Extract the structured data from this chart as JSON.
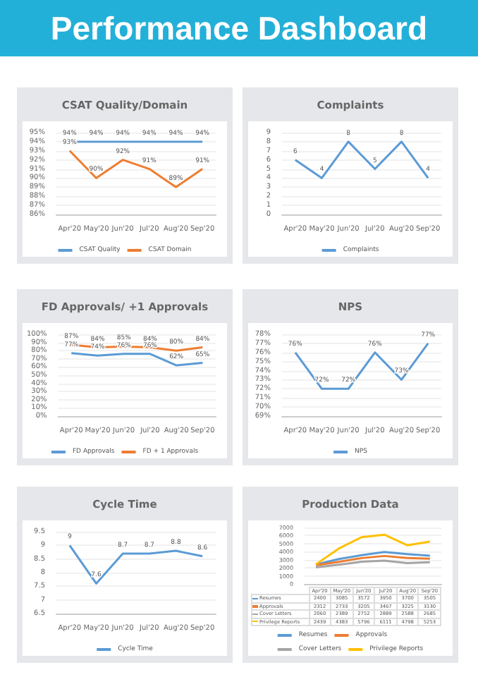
{
  "chart_data": [
    {
      "type": "other",
      "title": "Performance Dashboard"
    },
    {
      "type": "line",
      "title": "CSAT Quality/Domain",
      "categories": [
        "Apr'20",
        "May'20",
        "Jun'20",
        "Jul'20",
        "Aug'20",
        "Sep'20"
      ],
      "series": [
        {
          "name": "CSAT Quality",
          "color": "#5b9bd5",
          "values": [
            94,
            94,
            94,
            94,
            94,
            94
          ],
          "value_labels": [
            "94%",
            "94%",
            "94%",
            "94%",
            "94%",
            "94%"
          ]
        },
        {
          "name": "CSAT Domain",
          "color": "#ed7d31",
          "values": [
            93,
            90,
            92,
            91,
            89,
            91
          ],
          "value_labels": [
            "93%",
            "90%",
            "92%",
            "91%",
            "89%",
            "91%"
          ]
        }
      ],
      "ylim": [
        86,
        95
      ],
      "yticks": [
        {
          "value": 86,
          "label": "86%"
        },
        {
          "value": 87,
          "label": "87%"
        },
        {
          "value": 88,
          "label": "88%"
        },
        {
          "value": 89,
          "label": "89%"
        },
        {
          "value": 90,
          "label": "90%"
        },
        {
          "value": 91,
          "label": "91%"
        },
        {
          "value": 92,
          "label": "92%"
        },
        {
          "value": 93,
          "label": "93%"
        },
        {
          "value": 94,
          "label": "94%"
        },
        {
          "value": 95,
          "label": "95%"
        }
      ],
      "grid": "y",
      "legend": "bottom",
      "marker": "none"
    },
    {
      "type": "line",
      "title": "Complaints",
      "categories": [
        "Apr'20",
        "May'20",
        "Jun'20",
        "Jul'20",
        "Aug'20",
        "Sep'20"
      ],
      "series": [
        {
          "name": "Complaints",
          "color": "#5b9bd5",
          "values": [
            6,
            4,
            8,
            5,
            8,
            4
          ]
        }
      ],
      "ylim": [
        0,
        9
      ],
      "yticks": [
        0,
        1,
        2,
        3,
        4,
        5,
        6,
        7,
        8,
        9
      ],
      "grid": "y",
      "legend": "bottom",
      "marker": "none",
      "data_labels": true
    },
    {
      "type": "line",
      "title": "FD Approvals/ +1 Approvals",
      "categories": [
        "Apr'20",
        "May'20",
        "Jun'20",
        "Jul'20",
        "Aug'20",
        "Sep'20"
      ],
      "series": [
        {
          "name": "FD Approvals",
          "color": "#5b9bd5",
          "values": [
            77,
            74,
            76,
            76,
            62,
            65
          ],
          "value_labels": [
            "77%",
            "74%",
            "76%",
            "76%",
            "62%",
            "65%"
          ]
        },
        {
          "name": "FD + 1 Approvals",
          "color": "#ed7d31",
          "values": [
            87,
            84,
            85,
            84,
            80,
            84
          ],
          "value_labels": [
            "87%",
            "84%",
            "85%",
            "84%",
            "80%",
            "84%"
          ]
        }
      ],
      "ylim": [
        0,
        100
      ],
      "yticks": [
        {
          "value": 0,
          "label": "0%"
        },
        {
          "value": 10,
          "label": "10%"
        },
        {
          "value": 20,
          "label": "20%"
        },
        {
          "value": 30,
          "label": "30%"
        },
        {
          "value": 40,
          "label": "40%"
        },
        {
          "value": 50,
          "label": "50%"
        },
        {
          "value": 60,
          "label": "60%"
        },
        {
          "value": 70,
          "label": "70%"
        },
        {
          "value": 80,
          "label": "80%"
        },
        {
          "value": 90,
          "label": "90%"
        },
        {
          "value": 100,
          "label": "100%"
        }
      ],
      "grid": "y",
      "legend": "bottom",
      "marker": "none"
    },
    {
      "type": "line",
      "title": "NPS",
      "categories": [
        "Apr'20",
        "May'20",
        "Jun'20",
        "Jul'20",
        "Aug'20",
        "Sep'20"
      ],
      "series": [
        {
          "name": "NPS",
          "color": "#5b9bd5",
          "values": [
            76,
            72,
            72,
            76,
            73,
            77
          ],
          "value_labels": [
            "76%",
            "72%",
            "72%",
            "76%",
            "73%",
            "77%"
          ]
        }
      ],
      "ylim": [
        69,
        78
      ],
      "yticks": [
        {
          "value": 69,
          "label": "69%"
        },
        {
          "value": 70,
          "label": "70%"
        },
        {
          "value": 71,
          "label": "71%"
        },
        {
          "value": 72,
          "label": "72%"
        },
        {
          "value": 73,
          "label": "73%"
        },
        {
          "value": 74,
          "label": "74%"
        },
        {
          "value": 75,
          "label": "75%"
        },
        {
          "value": 76,
          "label": "76%"
        },
        {
          "value": 77,
          "label": "77%"
        },
        {
          "value": 78,
          "label": "78%"
        }
      ],
      "grid": "y",
      "legend": "bottom",
      "marker": "none"
    },
    {
      "type": "line",
      "title": "Cycle Time",
      "categories": [
        "Apr'20",
        "May'20",
        "Jun'20",
        "Jul'20",
        "Aug'20",
        "Sep'20"
      ],
      "series": [
        {
          "name": "Cycle Time",
          "color": "#5b9bd5",
          "values": [
            9,
            7.6,
            8.7,
            8.7,
            8.8,
            8.6
          ]
        }
      ],
      "ylim": [
        6.5,
        9.5
      ],
      "yticks": [
        6.5,
        7,
        7.5,
        8,
        8.5,
        9,
        9.5
      ],
      "grid": "y",
      "legend": "bottom",
      "marker": "none",
      "data_labels": true
    },
    {
      "type": "line",
      "title": "Production Data",
      "categories": [
        "Apr'20",
        "May'20",
        "Jun'20",
        "Jul'20",
        "Aug'20",
        "Sep'20"
      ],
      "series": [
        {
          "name": "Resumes",
          "color": "#5b9bd5",
          "values": [
            2400,
            3085,
            3572,
            3950,
            3700,
            3505
          ]
        },
        {
          "name": "Approvals",
          "color": "#ed7d31",
          "values": [
            2312,
            2733,
            3205,
            3467,
            3225,
            3130
          ]
        },
        {
          "name": "Cover Letters",
          "color": "#a5a5a5",
          "values": [
            2060,
            2389,
            2752,
            2889,
            2588,
            2685
          ]
        },
        {
          "name": "Privilege Reports",
          "color": "#ffc000",
          "values": [
            2439,
            4383,
            5796,
            6111,
            4798,
            5253
          ]
        }
      ],
      "ylim": [
        0,
        7000
      ],
      "yticks": [
        0,
        1000,
        2000,
        3000,
        4000,
        5000,
        6000,
        7000
      ],
      "grid": "y",
      "legend": "bottom",
      "marker": "none",
      "data_labels": true
    }
  ]
}
